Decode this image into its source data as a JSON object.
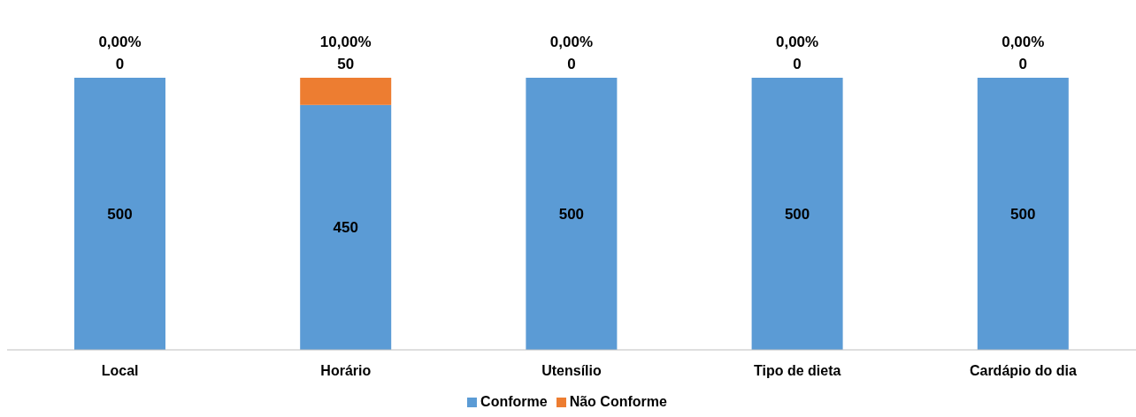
{
  "chart_data": {
    "type": "bar",
    "stacked": true,
    "categories": [
      "Local",
      "Horário",
      "Utensílio",
      "Tipo de dieta",
      "Cardápio do dia"
    ],
    "series": [
      {
        "name": "Conforme",
        "color": "#5b9bd5",
        "values": [
          500,
          450,
          500,
          500,
          500
        ],
        "value_labels": [
          "500",
          "450",
          "500",
          "500",
          "500"
        ]
      },
      {
        "name": "Não Conforme",
        "color": "#ed7d31",
        "values": [
          0,
          50,
          0,
          0,
          0
        ],
        "value_labels": [
          "0,00%\n0",
          "10,00%\n50",
          "0,00%\n0",
          "0,00%\n0",
          "0,00%\n0"
        ]
      }
    ],
    "legend": "bottom",
    "grid": false
  }
}
